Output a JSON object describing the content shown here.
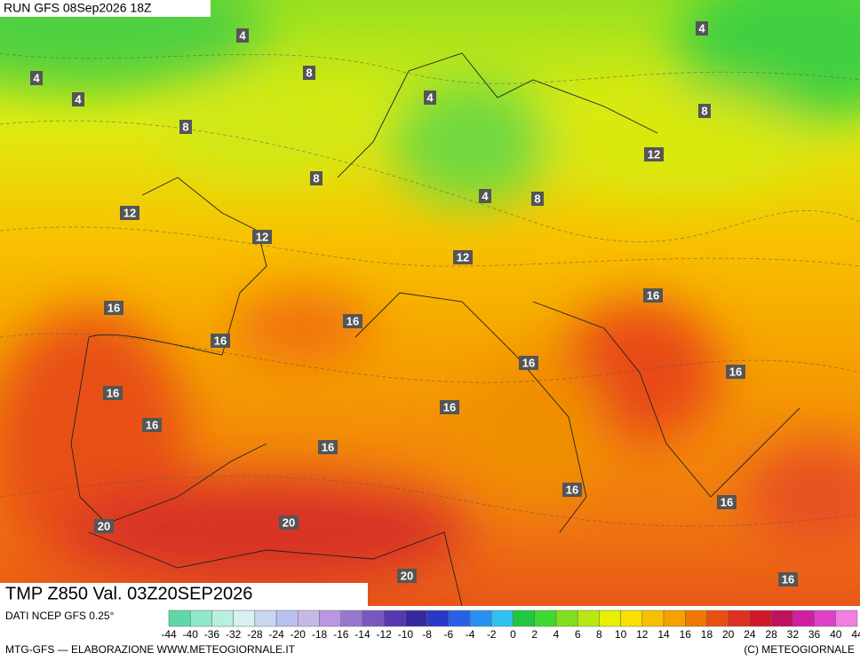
{
  "header": {
    "run": "RUN GFS 08Sep2026 18Z"
  },
  "map": {
    "title": "TMP Z850 Val. 03Z20SEP2026",
    "contour_labels": [
      4,
      4,
      4,
      8,
      4,
      4,
      8,
      8,
      12,
      8,
      4,
      8,
      12,
      12,
      12,
      16,
      16,
      16,
      16,
      16,
      16,
      16,
      16,
      16,
      16,
      16,
      16,
      20,
      20,
      20,
      16
    ]
  },
  "legend": {
    "source": "DATI NCEP GFS 0.25°",
    "ticks": [
      -44,
      -40,
      -36,
      -32,
      -28,
      -24,
      -20,
      -18,
      -16,
      -14,
      -12,
      -10,
      -8,
      -6,
      -4,
      -2,
      0,
      2,
      4,
      6,
      8,
      10,
      12,
      14,
      16,
      18,
      20,
      24,
      28,
      32,
      36,
      40,
      44
    ],
    "colors": [
      "#5fd8a8",
      "#8fe8c8",
      "#b8f0e0",
      "#d8f0f0",
      "#c8d8f0",
      "#b8c0f0",
      "#c8b8e8",
      "#b898e0",
      "#9878d0",
      "#7858c0",
      "#5838b0",
      "#3828a0",
      "#2838c8",
      "#2860e8",
      "#2890f0",
      "#30c0f0",
      "#20c840",
      "#40d830",
      "#80e020",
      "#b8e810",
      "#e8f000",
      "#f8e000",
      "#f8c000",
      "#f8a000",
      "#f07800",
      "#e85010",
      "#e03020",
      "#d01828",
      "#c01060",
      "#d020a0",
      "#e040c8",
      "#f080e0"
    ]
  },
  "footer": {
    "left": "MTG-GFS — ELABORAZIONE WWW.METEOGIORNALE.IT",
    "right": "(C) METEOGIORNALE"
  }
}
